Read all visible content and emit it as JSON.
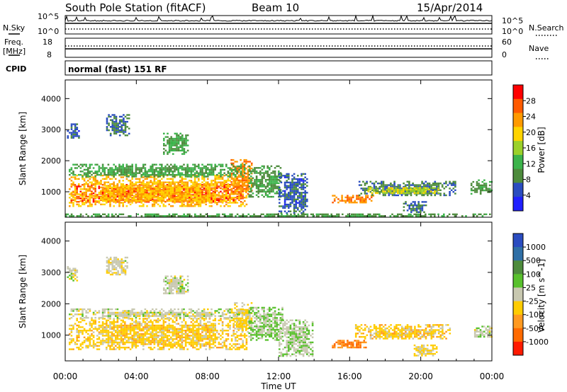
{
  "header": {
    "station": "South Pole Station (fitACF)",
    "beam": "Beam 10",
    "date": "15/Apr/2014"
  },
  "side_labels": {
    "n_sky": "N.Sky",
    "freq_line1": "Freq.",
    "freq_line2": "[MHz]",
    "cpid": "CPID",
    "n_search": "N.Search",
    "nave": "Nave"
  },
  "strip_ticks": {
    "nsky_left_hi": "10^5",
    "nsky_left_lo": "10^0",
    "nsky_right_hi": "10^5",
    "nsky_right_lo": "10^0",
    "freq_hi": "18",
    "freq_lo": "8",
    "nave_hi": "60",
    "nave_lo": "0"
  },
  "cpid_text": "normal (fast) 151 RF",
  "colors": {
    "power": [
      "#2020ff",
      "#2a4cc0",
      "#4d8b3c",
      "#3cb44b",
      "#9bd12a",
      "#ffd400",
      "#ff9a00",
      "#ff5a00",
      "#ff0000"
    ],
    "velocity": [
      "#2a4cc0",
      "#2f6fa6",
      "#4d8b3c",
      "#58c02c",
      "#c8c8b0",
      "#ffcc00",
      "#ff9a20",
      "#ff6a00",
      "#ff1a00"
    ]
  },
  "chart_data": [
    {
      "type": "heatmap",
      "name": "power",
      "ylabel": "Slant Range [km]",
      "xlabel": "",
      "ylim": [
        180,
        4600
      ],
      "yticks": [
        "1000",
        "2000",
        "3000",
        "4000"
      ],
      "colorbar_label": "Power [dB]",
      "colorbar_ticks": [
        "4",
        "8",
        "12",
        "16",
        "20",
        "24",
        "28"
      ],
      "colorbar_range": [
        0,
        32
      ],
      "regions": [
        {
          "t0": 0.3,
          "t1": 10.0,
          "r0": 650,
          "r1": 1250,
          "v": 28
        },
        {
          "t0": 0.2,
          "t1": 10.3,
          "r0": 500,
          "r1": 1550,
          "v": 21
        },
        {
          "t0": 9.3,
          "t1": 10.5,
          "r0": 900,
          "r1": 2050,
          "v": 24
        },
        {
          "t0": 10.3,
          "t1": 12.2,
          "r0": 800,
          "r1": 1850,
          "v": 10
        },
        {
          "t0": 12.0,
          "t1": 13.7,
          "r0": 300,
          "r1": 1600,
          "v": 6
        },
        {
          "t0": 0.2,
          "t1": 10.2,
          "r0": 1450,
          "r1": 1900,
          "v": 11
        },
        {
          "t0": 15.0,
          "t1": 17.4,
          "r0": 600,
          "r1": 900,
          "v": 24
        },
        {
          "t0": 16.5,
          "t1": 22.0,
          "r0": 850,
          "r1": 1350,
          "v": 8
        },
        {
          "t0": 17.0,
          "t1": 21.0,
          "r0": 950,
          "r1": 1150,
          "v": 18
        },
        {
          "t0": 0.1,
          "t1": 0.8,
          "r0": 2700,
          "r1": 3200,
          "v": 6
        },
        {
          "t0": 2.3,
          "t1": 3.6,
          "r0": 2800,
          "r1": 3500,
          "v": 7
        },
        {
          "t0": 5.5,
          "t1": 7.0,
          "r0": 2200,
          "r1": 2900,
          "v": 11
        },
        {
          "t0": 19.0,
          "t1": 20.3,
          "r0": 300,
          "r1": 700,
          "v": 7
        },
        {
          "t0": 22.8,
          "t1": 24.0,
          "r0": 900,
          "r1": 1400,
          "v": 10
        },
        {
          "t0": 0.0,
          "t1": 24.0,
          "r0": 200,
          "r1": 300,
          "v": 10
        }
      ]
    },
    {
      "type": "heatmap",
      "name": "velocity",
      "ylabel": "Slant Range [km]",
      "xlabel": "Time UT",
      "ylim": [
        180,
        4600
      ],
      "yticks": [
        "1000",
        "2000",
        "3000",
        "4000"
      ],
      "xlim": [
        0,
        24
      ],
      "xticks": [
        "00:00",
        "04:00",
        "08:00",
        "12:00",
        "16:00",
        "20:00",
        "00:00"
      ],
      "colorbar_label": "Velocity [m s^-1]",
      "colorbar_ticks": [
        "1000",
        "500",
        "100",
        "25",
        "-25",
        "-100",
        "-500",
        "-1000"
      ],
      "colorbar_range": [
        -1400,
        1400
      ],
      "regions": [
        {
          "t0": 0.2,
          "t1": 10.3,
          "r0": 500,
          "r1": 1550,
          "v": -300
        },
        {
          "t0": 9.5,
          "t1": 10.5,
          "r0": 1100,
          "r1": 2050,
          "v": -250
        },
        {
          "t0": 10.3,
          "t1": 12.3,
          "r0": 800,
          "r1": 1900,
          "v": 200
        },
        {
          "t0": 12.0,
          "t1": 14.0,
          "r0": 300,
          "r1": 1500,
          "v": 120
        },
        {
          "t0": 0.2,
          "t1": 10.0,
          "r0": 1500,
          "r1": 1850,
          "v": 0
        },
        {
          "t0": 15.0,
          "t1": 17.0,
          "r0": 600,
          "r1": 850,
          "v": -800
        },
        {
          "t0": 16.3,
          "t1": 21.7,
          "r0": 850,
          "r1": 1350,
          "v": -300
        },
        {
          "t0": 0.1,
          "t1": 0.7,
          "r0": 2700,
          "r1": 3200,
          "v": 0
        },
        {
          "t0": 2.3,
          "t1": 3.5,
          "r0": 2900,
          "r1": 3500,
          "v": -50
        },
        {
          "t0": 5.5,
          "t1": 7.0,
          "r0": 2300,
          "r1": 2900,
          "v": 30
        },
        {
          "t0": 19.5,
          "t1": 21.0,
          "r0": 300,
          "r1": 700,
          "v": -150
        },
        {
          "t0": 23.0,
          "t1": 24.0,
          "r0": 900,
          "r1": 1300,
          "v": 40
        }
      ]
    }
  ]
}
